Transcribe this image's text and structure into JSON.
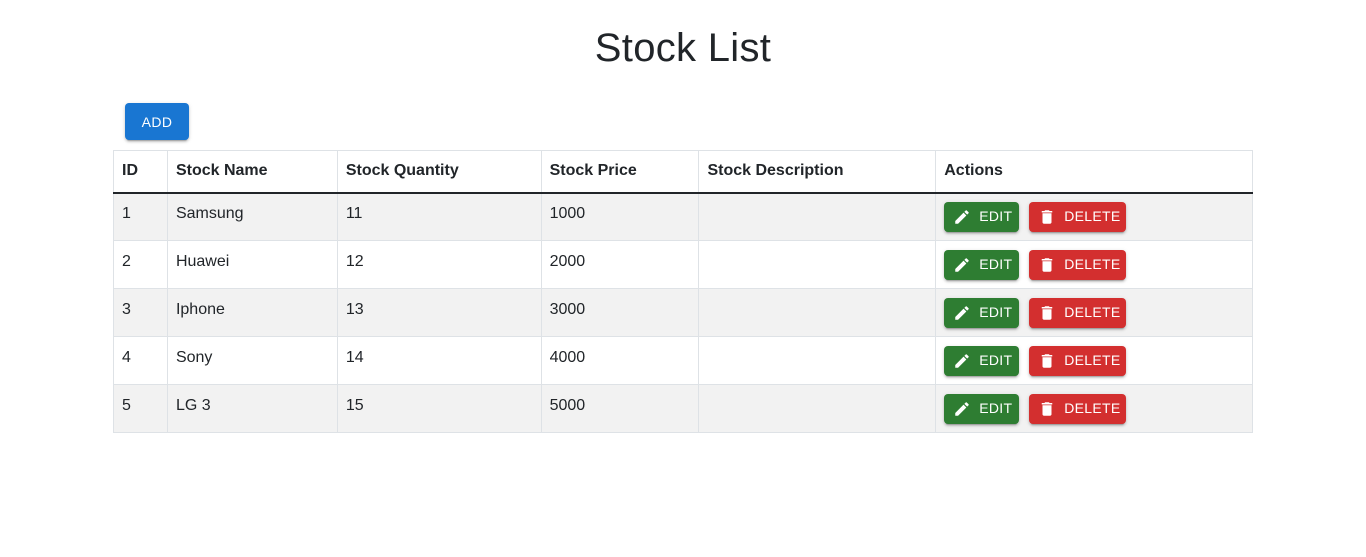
{
  "page": {
    "title": "Stock List",
    "add_label": "ADD"
  },
  "table": {
    "headers": [
      "ID",
      "Stock Name",
      "Stock Quantity",
      "Stock Price",
      "Stock Description",
      "Actions"
    ],
    "rows": [
      {
        "id": "1",
        "name": "Samsung",
        "quantity": "11",
        "price": "1000",
        "description": ""
      },
      {
        "id": "2",
        "name": "Huawei",
        "quantity": "12",
        "price": "2000",
        "description": ""
      },
      {
        "id": "3",
        "name": "Iphone",
        "quantity": "13",
        "price": "3000",
        "description": ""
      },
      {
        "id": "4",
        "name": "Sony",
        "quantity": "14",
        "price": "4000",
        "description": ""
      },
      {
        "id": "5",
        "name": "LG 3",
        "quantity": "15",
        "price": "5000",
        "description": ""
      }
    ],
    "actions": {
      "edit_label": "EDIT",
      "edit_icon": "pencil-icon",
      "delete_label": "DELETE",
      "delete_icon": "trash-icon"
    }
  },
  "colors": {
    "primary": "#1976d2",
    "success": "#2e7d32",
    "danger": "#d32f2f",
    "stripe": "#f2f2f2"
  }
}
